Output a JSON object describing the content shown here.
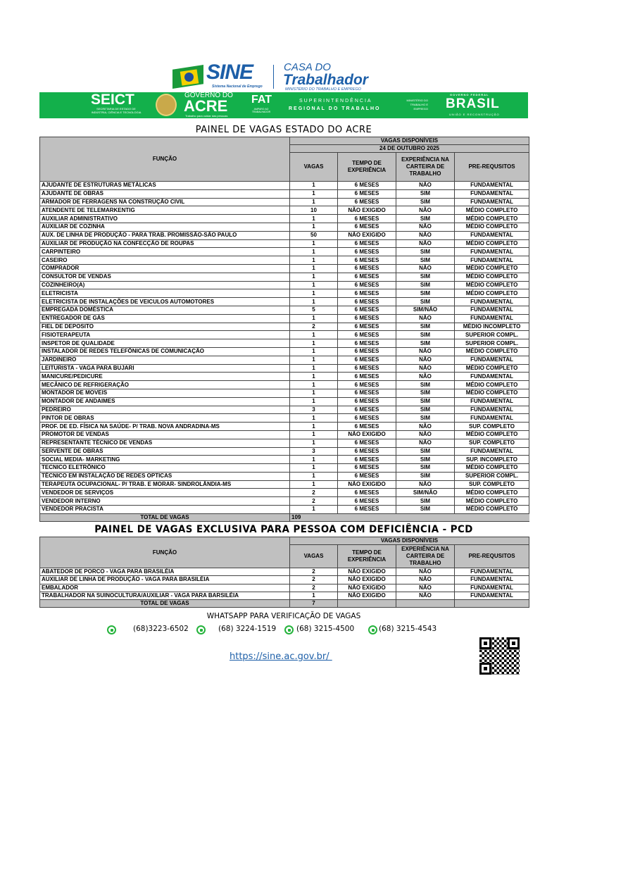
{
  "header": {
    "sine": "SINE",
    "sine_sub": "Sistema Nacional de Emprego",
    "casa": "CASA DO",
    "trabalhador": "Trabalhador",
    "ministerio": "MINISTÉRIO DO TRABALHO E EMPREGO",
    "seict": "SEICT",
    "seict_sub": "SECRETARIA DE ESTADO DE INDÚSTRIA, CIÊNCIA E TECNOLOGIA",
    "gov": "GOVERNO DO",
    "acre": "ACRE",
    "acre_sub": "Trabalho para cuidar das pessoas",
    "fat": "FAT",
    "fat_sub": "AMPARO AO TRABALHADOR",
    "super1": "SUPERINTENDÊNCIA",
    "super2": "REGIONAL DO TRABALHO",
    "mte": "MINISTÉRIO DO TRABALHO E EMPREGO",
    "govfed": "GOVERNO FEDERAL",
    "brasil": "BRASIL",
    "uniao": "UNIÃO E RECONSTRUÇÃO",
    "brand_green": "#13b04b",
    "brand_blue": "#1d5fa8"
  },
  "main": {
    "title": "PAINEL DE VAGAS ESTADO DO ACRE",
    "headers": {
      "funcao": "FUNÇÃO",
      "disp": "VAGAS DISPONÍVEIS",
      "date": "24 DE OUTUBRO 2025",
      "vagas": "VAGAS",
      "tempo": "TEMPO DE EXPERIÊNCIA",
      "exp": "EXPERIÊNCIA NA CARTEIRA DE TRABALHO",
      "pre": "PRE-REQUSITOS"
    },
    "rows": [
      [
        "AJUDANTE DE ESTRUTURAS METÁLICAS",
        "1",
        "6 MESES",
        "NÃO",
        "FUNDAMENTAL"
      ],
      [
        "AJUDANTE DE OBRAS",
        "1",
        "6 MESES",
        "SIM",
        "FUNDAMENTAL"
      ],
      [
        "ARMADOR DE FERRAGENS NA CONSTRUÇÃO CIVIL",
        "1",
        "6 MESES",
        "SIM",
        "FUNDAMENTAL"
      ],
      [
        "ATENDENTE DE TELEMARKENTIG",
        "10",
        "NÃO EXIGIDO",
        "NÃO",
        "MÉDIO COMPLETO"
      ],
      [
        "AUXILIAR ADMINISTRATIVO",
        "1",
        "6 MESES",
        "SIM",
        "MÉDIO COMPLETO"
      ],
      [
        "AUXILIAR DE COZINHA",
        "1",
        "6 MESES",
        "NÃO",
        "MÉDIO COMPLETO"
      ],
      [
        "AUX. DE LINHA DE PRODUÇÃO - PARA TRAB. PROMISSÃO-SÃO PAULO",
        "50",
        "NÃO EXIGIDO",
        "NÃO",
        "FUNDAMENTAL"
      ],
      [
        "AUXILIAR DE PRODUÇÃO NA CONFECÇÃO DE ROUPAS",
        "1",
        "6 MESES",
        "NÃO",
        "MÉDIO COMPLETO"
      ],
      [
        "CARPINTEIRO",
        "1",
        "6 MESES",
        "SIM",
        "FUNDAMENTAL"
      ],
      [
        "CASEIRO",
        "1",
        "6 MESES",
        "SIM",
        "FUNDAMENTAL"
      ],
      [
        "COMPRADOR",
        "1",
        "6 MESES",
        "NÃO",
        "MÉDIO COMPLETO"
      ],
      [
        "CONSULTOR DE VENDAS",
        "1",
        "6 MESES",
        "SIM",
        "MÉDIO COMPLETO"
      ],
      [
        "COZINHEIRO(A)",
        "1",
        "6 MESES",
        "SIM",
        "MÉDIO COMPLETO"
      ],
      [
        "ELETRICISTA",
        "1",
        "6 MESES",
        "SIM",
        "MÉDIO COMPLETO"
      ],
      [
        "ELETRICISTA DE INSTALAÇÕES DE VEICULOS AUTOMOTORES",
        "1",
        "6 MESES",
        "SIM",
        "FUNDAMENTAL"
      ],
      [
        "EMPREGADA DOMÉSTICA",
        "5",
        "6 MESES",
        "SIM/NÃO",
        "FUNDAMENTAL"
      ],
      [
        "ENTREGADOR DE GÁS",
        "1",
        "6 MESES",
        "NÃO",
        "FUNDAMENTAL"
      ],
      [
        "FIEL DE DEPOSITO",
        "2",
        "6 MESES",
        "SIM",
        "MÉDIO INCOMPLETO"
      ],
      [
        "FISIOTERAPEUTA",
        "1",
        "6 MESES",
        "SIM",
        "SUPERIOR COMPL."
      ],
      [
        "INSPETOR DE QUALIDADE",
        "1",
        "6 MESES",
        "SIM",
        "SUPERIOR COMPL."
      ],
      [
        "INSTALADOR DE REDES TELEFÔNICAS  DE COMUNICAÇÃO",
        "1",
        "6 MESES",
        "NÃO",
        "MÉDIO COMPLETO"
      ],
      [
        "JARDINEIRO",
        "1",
        "6 MESES",
        "NÃO",
        "FUNDAMENTAL"
      ],
      [
        "LEITURISTA - VAGA PARA BUJARI",
        "1",
        "6 MESES",
        "NÃO",
        "MÉDIO COMPLETO"
      ],
      [
        "MANICURE/PEDICURE",
        "1",
        "6 MESES",
        "NÃO",
        "FUNDAMENTAL"
      ],
      [
        "MECÂNICO DE REFRIGERAÇÃO",
        "1",
        "6 MESES",
        "SIM",
        "MÉDIO COMPLETO"
      ],
      [
        "MONTADOR DE MOVEIS",
        "1",
        "6 MESES",
        "SIM",
        "MÉDIO COMPLETO"
      ],
      [
        "MONTADOR DE ANDAIMES",
        "1",
        "6 MESES",
        "SIM",
        "FUNDAMENTAL"
      ],
      [
        "PEDREIRO",
        "3",
        "6 MESES",
        "SIM",
        "FUNDAMENTAL"
      ],
      [
        "PINTOR DE OBRAS",
        "1",
        "6 MESES",
        "SIM",
        "FUNDAMENTAL"
      ],
      [
        "PROF. DE ED. FÍSICA NA SAÚDE- P/ TRAB. NOVA ANDRADINA-MS",
        "1",
        "6 MESES",
        "NÃO",
        "SUP. COMPLETO"
      ],
      [
        "PROMOTOR DE VENDAS",
        "1",
        "NÃO EXIGIDO",
        "NÃO",
        "MÉDIO COMPLETO"
      ],
      [
        "REPRESENTANTE TÉCNICO DE VENDAS",
        "1",
        "6 MESES",
        "NÃO",
        "SUP. COMPLETO"
      ],
      [
        "SERVENTE DE OBRAS",
        "3",
        "6 MESES",
        "SIM",
        "FUNDAMENTAL"
      ],
      [
        "SOCIAL MEDIA- MARKETING",
        "1",
        "6 MESES",
        "SIM",
        "SUP. INCOMPLETO"
      ],
      [
        "TECNICO ELETRÔNICO",
        "1",
        "6 MESES",
        "SIM",
        "MÉDIO COMPLETO"
      ],
      [
        "TÉCNICO EM INSTALAÇÃO DE REDES OPTICAS",
        "1",
        "6 MESES",
        "SIM",
        "SUPERIOR COMPL."
      ],
      [
        "TERAPEUTA OCUPACIONAL- P/ TRAB. E MORAR- SINDROLÂNDIA-MS",
        "1",
        "NÃO EXIGIDO",
        "NÃO",
        "SUP. COMPLETO"
      ],
      [
        "VENDEDOR DE SERVIÇOS",
        "2",
        "6 MESES",
        "SIM/NÃO",
        "MÉDIO COMPLETO"
      ],
      [
        "VENDEDOR INTERNO",
        "2",
        "6 MESES",
        "SIM",
        "MÉDIO COMPLETO"
      ],
      [
        "VENDEDOR PRACISTA",
        "1",
        "6 MESES",
        "SIM",
        "MÉDIO COMPLETO"
      ]
    ],
    "total_label": "TOTAL DE VAGAS",
    "total": "109"
  },
  "pcd": {
    "title": "PAINEL DE VAGAS EXCLUSIVA PARA PESSOA COM DEFICIÊNCIA - PCD",
    "rows": [
      [
        "ABATEDOR DE PORCO - VAGA PARA BRASILÉIA",
        "2",
        "NÃO EXIGIDO",
        "NÃO",
        "FUNDAMENTAL"
      ],
      [
        "AUXILIAR DE LINHA DE PRODUÇÃO - VAGA PARA BRASILÉIA",
        "2",
        "NÃO EXIGIDO",
        "NÃO",
        "FUNDAMENTAL"
      ],
      [
        "EMBALADOR",
        "2",
        "NÃO EXIGIDO",
        "NÃO",
        "FUNDAMENTAL"
      ],
      [
        "TRABALHADOR NA SUINOCULTURA/AUXILIAR - VAGA PARA BARSILÉIA",
        "1",
        "NÃO EXIGIDO",
        "NÃO",
        "FUNDAMENTAL"
      ]
    ],
    "total_label": "TOTAL DE VAGAS",
    "total": "7"
  },
  "footer": {
    "whatsapp_title": "WHATSAPP PARA VERIFICAÇÃO DE VAGAS",
    "phones": [
      "(68)3223-6502",
      "(68) 3224-1519",
      "(68) 3215-4500",
      "(68) 3215-4543"
    ],
    "icon": "whatsapp-icon",
    "link": "https://sine.ac.gov.br/ ",
    "qr": "qr-code"
  }
}
